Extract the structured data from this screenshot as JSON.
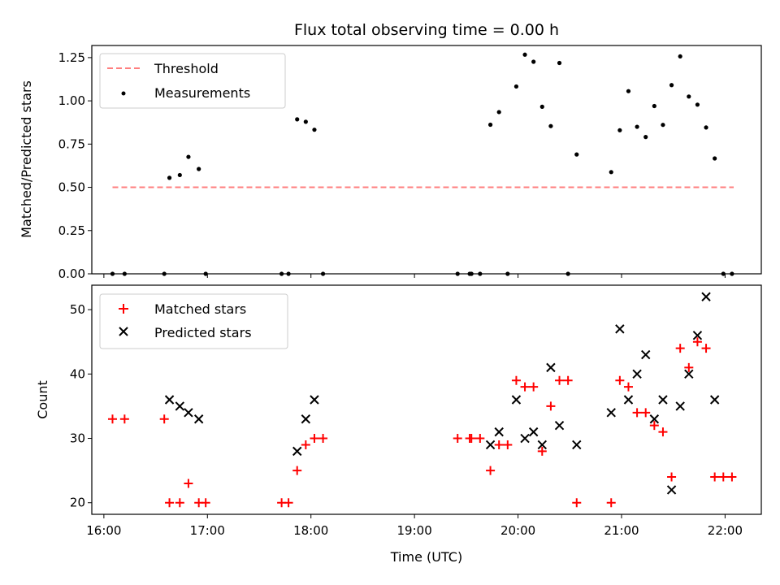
{
  "chart_data": [
    {
      "type": "scatter",
      "panel": "top",
      "title": "Flux total observing time = 0.00 h",
      "xlabel": "",
      "ylabel": "Matched/Predicted stars",
      "xlim": [
        "15:53",
        "22:21"
      ],
      "ylim": [
        0,
        1.32
      ],
      "yticks": [
        0.0,
        0.25,
        0.5,
        0.75,
        1.0,
        1.25
      ],
      "ytick_labels": [
        "0.00",
        "0.25",
        "0.50",
        "0.75",
        "1.00",
        "1.25"
      ],
      "legend": {
        "placement": "top-left",
        "entries": [
          "Threshold",
          "Measurements"
        ]
      },
      "threshold": {
        "name": "Threshold",
        "value": 0.5,
        "x_start": "16:05",
        "x_end": "22:05",
        "color": "#ff7f7f",
        "style": "dashed"
      },
      "series": [
        {
          "name": "Measurements",
          "color": "#000000",
          "marker": "dot",
          "points": [
            [
              "16:05",
              0.0
            ],
            [
              "16:12",
              0.0
            ],
            [
              "16:35",
              0.0
            ],
            [
              "16:38",
              0.555
            ],
            [
              "16:44",
              0.571
            ],
            [
              "16:49",
              0.676
            ],
            [
              "16:55",
              0.606
            ],
            [
              "16:59",
              0.0
            ],
            [
              "17:43",
              0.0
            ],
            [
              "17:47",
              0.0
            ],
            [
              "17:52",
              0.893
            ],
            [
              "17:57",
              0.879
            ],
            [
              "18:02",
              0.833
            ],
            [
              "18:07",
              0.0
            ],
            [
              "19:25",
              0.0
            ],
            [
              "19:32",
              0.0
            ],
            [
              "19:33",
              0.0
            ],
            [
              "19:38",
              0.0
            ],
            [
              "19:44",
              0.862
            ],
            [
              "19:49",
              0.935
            ],
            [
              "19:54",
              0.0
            ],
            [
              "19:59",
              1.083
            ],
            [
              "20:04",
              1.267
            ],
            [
              "20:09",
              1.226
            ],
            [
              "20:14",
              0.966
            ],
            [
              "20:19",
              0.854
            ],
            [
              "20:24",
              1.219
            ],
            [
              "20:29",
              0.0
            ],
            [
              "20:34",
              0.69
            ],
            [
              "20:54",
              0.588
            ],
            [
              "20:59",
              0.83
            ],
            [
              "21:04",
              1.056
            ],
            [
              "21:09",
              0.85
            ],
            [
              "21:14",
              0.791
            ],
            [
              "21:19",
              0.97
            ],
            [
              "21:24",
              0.861
            ],
            [
              "21:29",
              1.091
            ],
            [
              "21:34",
              1.257
            ],
            [
              "21:39",
              1.025
            ],
            [
              "21:44",
              0.978
            ],
            [
              "21:49",
              0.846
            ],
            [
              "21:54",
              0.667
            ],
            [
              "21:59",
              0.0
            ],
            [
              "22:04",
              0.0
            ]
          ]
        }
      ],
      "grid": false
    },
    {
      "type": "scatter",
      "panel": "bottom",
      "title": "",
      "xlabel": "Time (UTC)",
      "ylabel": "Count",
      "xlim": [
        "15:53",
        "22:21"
      ],
      "ylim": [
        18.2,
        53.8
      ],
      "xticks": [
        "16:00",
        "17:00",
        "18:00",
        "19:00",
        "20:00",
        "21:00",
        "22:00"
      ],
      "yticks": [
        20,
        30,
        40,
        50
      ],
      "ytick_labels": [
        "20",
        "30",
        "40",
        "50"
      ],
      "legend": {
        "placement": "top-left",
        "entries": [
          "Matched stars",
          "Predicted stars"
        ]
      },
      "series": [
        {
          "name": "Matched stars",
          "color": "#ff0000",
          "marker": "plus",
          "points": [
            [
              "16:05",
              33
            ],
            [
              "16:12",
              33
            ],
            [
              "16:35",
              33
            ],
            [
              "16:38",
              20
            ],
            [
              "16:44",
              20
            ],
            [
              "16:49",
              23
            ],
            [
              "16:55",
              20
            ],
            [
              "16:59",
              20
            ],
            [
              "17:43",
              20
            ],
            [
              "17:47",
              20
            ],
            [
              "17:52",
              25
            ],
            [
              "17:57",
              29
            ],
            [
              "18:02",
              30
            ],
            [
              "18:07",
              30
            ],
            [
              "19:25",
              30
            ],
            [
              "19:32",
              30
            ],
            [
              "19:33",
              30
            ],
            [
              "19:38",
              30
            ],
            [
              "19:44",
              25
            ],
            [
              "19:49",
              29
            ],
            [
              "19:54",
              29
            ],
            [
              "19:59",
              39
            ],
            [
              "20:04",
              38
            ],
            [
              "20:09",
              38
            ],
            [
              "20:14",
              28
            ],
            [
              "20:19",
              35
            ],
            [
              "20:24",
              39
            ],
            [
              "20:29",
              39
            ],
            [
              "20:34",
              20
            ],
            [
              "20:54",
              20
            ],
            [
              "20:59",
              39
            ],
            [
              "21:04",
              38
            ],
            [
              "21:09",
              34
            ],
            [
              "21:14",
              34
            ],
            [
              "21:19",
              32
            ],
            [
              "21:24",
              31
            ],
            [
              "21:29",
              24
            ],
            [
              "21:34",
              44
            ],
            [
              "21:39",
              41
            ],
            [
              "21:44",
              45
            ],
            [
              "21:49",
              44
            ],
            [
              "21:54",
              24
            ],
            [
              "21:59",
              24
            ],
            [
              "22:04",
              24
            ]
          ]
        },
        {
          "name": "Predicted stars",
          "color": "#000000",
          "marker": "x",
          "points": [
            [
              "16:38",
              36
            ],
            [
              "16:44",
              35
            ],
            [
              "16:49",
              34
            ],
            [
              "16:55",
              33
            ],
            [
              "17:52",
              28
            ],
            [
              "17:57",
              33
            ],
            [
              "18:02",
              36
            ],
            [
              "19:44",
              29
            ],
            [
              "19:49",
              31
            ],
            [
              "19:59",
              36
            ],
            [
              "20:04",
              30
            ],
            [
              "20:09",
              31
            ],
            [
              "20:14",
              29
            ],
            [
              "20:19",
              41
            ],
            [
              "20:24",
              32
            ],
            [
              "20:34",
              29
            ],
            [
              "20:54",
              34
            ],
            [
              "20:59",
              47
            ],
            [
              "21:04",
              36
            ],
            [
              "21:09",
              40
            ],
            [
              "21:14",
              43
            ],
            [
              "21:19",
              33
            ],
            [
              "21:24",
              36
            ],
            [
              "21:29",
              22
            ],
            [
              "21:34",
              35
            ],
            [
              "21:39",
              40
            ],
            [
              "21:44",
              46
            ],
            [
              "21:49",
              52
            ],
            [
              "21:54",
              36
            ]
          ]
        }
      ],
      "grid": false
    }
  ]
}
